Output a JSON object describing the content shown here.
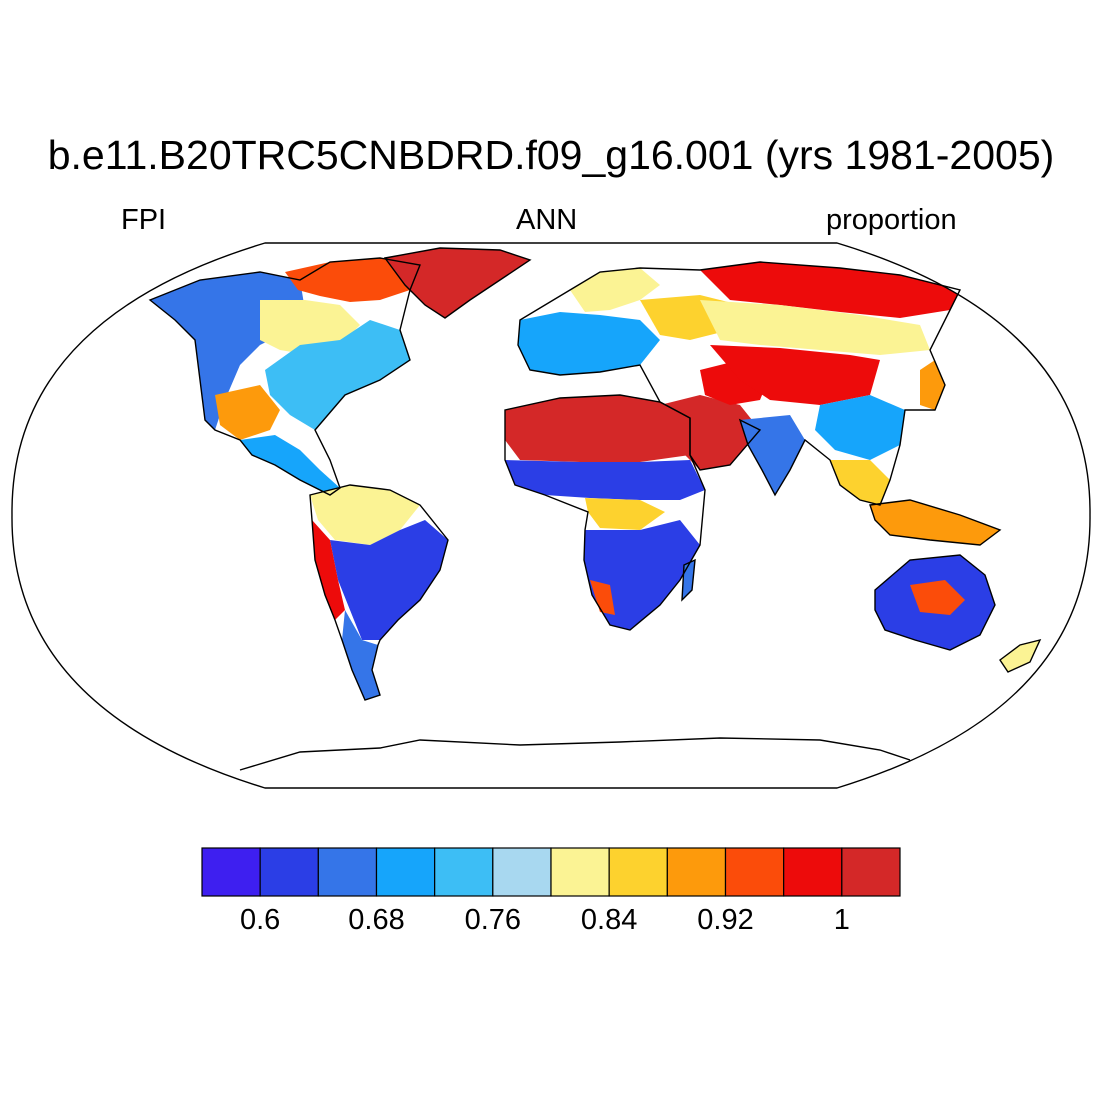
{
  "title": "b.e11.B20TRC5CNBDRD.f09_g16.001 (yrs 1981-2005)",
  "subtitle_left": "FPI",
  "subtitle_center": "ANN",
  "subtitle_right": "proportion",
  "map": {
    "projection": "robinson",
    "variable": "FPI",
    "season": "ANN",
    "units": "proportion",
    "ocean_color": "#ffffff",
    "coastline_color": "#000000",
    "regions": [
      {
        "name": "greenland",
        "level": 11
      },
      {
        "name": "sahara",
        "level": 11
      },
      {
        "name": "arabia",
        "level": 11
      },
      {
        "name": "central-asia",
        "level": 10
      },
      {
        "name": "siberia-north",
        "level": 10
      },
      {
        "name": "canada-arctic",
        "level": 9
      },
      {
        "name": "sahel",
        "level": 1
      },
      {
        "name": "central-africa",
        "level": 7
      },
      {
        "name": "southern-africa",
        "level": 1
      },
      {
        "name": "amazon",
        "level": 1
      },
      {
        "name": "northern-south-america",
        "level": 6
      },
      {
        "name": "eastern-north-america",
        "level": 4
      },
      {
        "name": "western-north-america",
        "level": 2
      },
      {
        "name": "europe",
        "level": 3
      },
      {
        "name": "india",
        "level": 2
      },
      {
        "name": "southeast-asia",
        "level": 7
      },
      {
        "name": "australia",
        "level": 1
      },
      {
        "name": "antarctica",
        "level": -1
      }
    ]
  },
  "colorbar": {
    "colors": [
      "#3e1ff0",
      "#2b3ee6",
      "#3575e8",
      "#16a5fb",
      "#3dbef5",
      "#a8d8f0",
      "#fbf394",
      "#fdd22e",
      "#fd9a0c",
      "#fb4c0a",
      "#ed0b0b",
      "#d42828"
    ],
    "tick_values": [
      0.6,
      0.68,
      0.76,
      0.84,
      0.92,
      1
    ],
    "tick_labels": [
      "0.6",
      "0.68",
      "0.76",
      "0.84",
      "0.92",
      "1"
    ]
  }
}
